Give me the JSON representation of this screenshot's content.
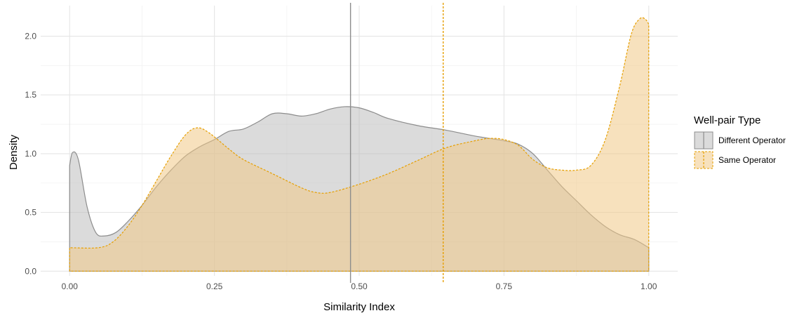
{
  "chart_data": {
    "type": "area",
    "title": "",
    "xlabel": "Similarity Index",
    "ylabel": "Density",
    "xlim": [
      -0.05,
      1.05
    ],
    "ylim": [
      -0.04,
      2.26
    ],
    "x_ticks": [
      0.0,
      0.25,
      0.5,
      0.75,
      1.0
    ],
    "x_tick_labels": [
      "0.00",
      "0.25",
      "0.50",
      "0.75",
      "1.00"
    ],
    "y_ticks": [
      0.0,
      0.5,
      1.0,
      1.5,
      2.0
    ],
    "y_tick_labels": [
      "0.0",
      "0.5",
      "1.0",
      "1.5",
      "2.0"
    ],
    "grid": true,
    "legend": {
      "title": "Well-pair Type",
      "placement": "right"
    },
    "series": [
      {
        "name": "Different Operator",
        "color": "#8c8c8c",
        "fill": "#bdbdbd",
        "line_style": "solid",
        "points": [
          [
            0.0,
            0.9
          ],
          [
            0.005,
            1.01
          ],
          [
            0.015,
            0.95
          ],
          [
            0.03,
            0.55
          ],
          [
            0.045,
            0.33
          ],
          [
            0.06,
            0.3
          ],
          [
            0.08,
            0.33
          ],
          [
            0.1,
            0.42
          ],
          [
            0.125,
            0.56
          ],
          [
            0.15,
            0.72
          ],
          [
            0.175,
            0.86
          ],
          [
            0.2,
            0.98
          ],
          [
            0.225,
            1.06
          ],
          [
            0.25,
            1.12
          ],
          [
            0.275,
            1.19
          ],
          [
            0.3,
            1.21
          ],
          [
            0.325,
            1.27
          ],
          [
            0.35,
            1.34
          ],
          [
            0.375,
            1.34
          ],
          [
            0.4,
            1.32
          ],
          [
            0.425,
            1.34
          ],
          [
            0.45,
            1.38
          ],
          [
            0.475,
            1.4
          ],
          [
            0.5,
            1.39
          ],
          [
            0.525,
            1.35
          ],
          [
            0.55,
            1.3
          ],
          [
            0.6,
            1.24
          ],
          [
            0.65,
            1.2
          ],
          [
            0.7,
            1.15
          ],
          [
            0.75,
            1.11
          ],
          [
            0.775,
            1.08
          ],
          [
            0.8,
            1.0
          ],
          [
            0.825,
            0.86
          ],
          [
            0.85,
            0.72
          ],
          [
            0.875,
            0.6
          ],
          [
            0.9,
            0.48
          ],
          [
            0.925,
            0.38
          ],
          [
            0.95,
            0.31
          ],
          [
            0.975,
            0.27
          ],
          [
            1.0,
            0.2
          ]
        ]
      },
      {
        "name": "Same Operator",
        "color": "#e69f00",
        "fill": "#f0c987",
        "line_style": "dashed",
        "points": [
          [
            0.0,
            0.2
          ],
          [
            0.05,
            0.2
          ],
          [
            0.075,
            0.25
          ],
          [
            0.1,
            0.38
          ],
          [
            0.125,
            0.56
          ],
          [
            0.15,
            0.77
          ],
          [
            0.175,
            0.98
          ],
          [
            0.2,
            1.16
          ],
          [
            0.22,
            1.22
          ],
          [
            0.24,
            1.18
          ],
          [
            0.275,
            1.04
          ],
          [
            0.3,
            0.95
          ],
          [
            0.35,
            0.83
          ],
          [
            0.4,
            0.71
          ],
          [
            0.425,
            0.67
          ],
          [
            0.45,
            0.67
          ],
          [
            0.5,
            0.74
          ],
          [
            0.55,
            0.83
          ],
          [
            0.6,
            0.94
          ],
          [
            0.65,
            1.05
          ],
          [
            0.7,
            1.11
          ],
          [
            0.725,
            1.13
          ],
          [
            0.75,
            1.12
          ],
          [
            0.775,
            1.07
          ],
          [
            0.8,
            0.95
          ],
          [
            0.825,
            0.88
          ],
          [
            0.85,
            0.86
          ],
          [
            0.875,
            0.86
          ],
          [
            0.9,
            0.9
          ],
          [
            0.925,
            1.12
          ],
          [
            0.95,
            1.58
          ],
          [
            0.97,
            2.02
          ],
          [
            0.985,
            2.15
          ],
          [
            0.995,
            2.14
          ],
          [
            1.0,
            2.1
          ]
        ]
      }
    ],
    "vlines": [
      {
        "x": 0.485,
        "color": "#8c8c8c",
        "line_style": "solid",
        "series": "Different Operator"
      },
      {
        "x": 0.645,
        "color": "#e69f00",
        "line_style": "dashed",
        "series": "Same Operator"
      }
    ]
  }
}
